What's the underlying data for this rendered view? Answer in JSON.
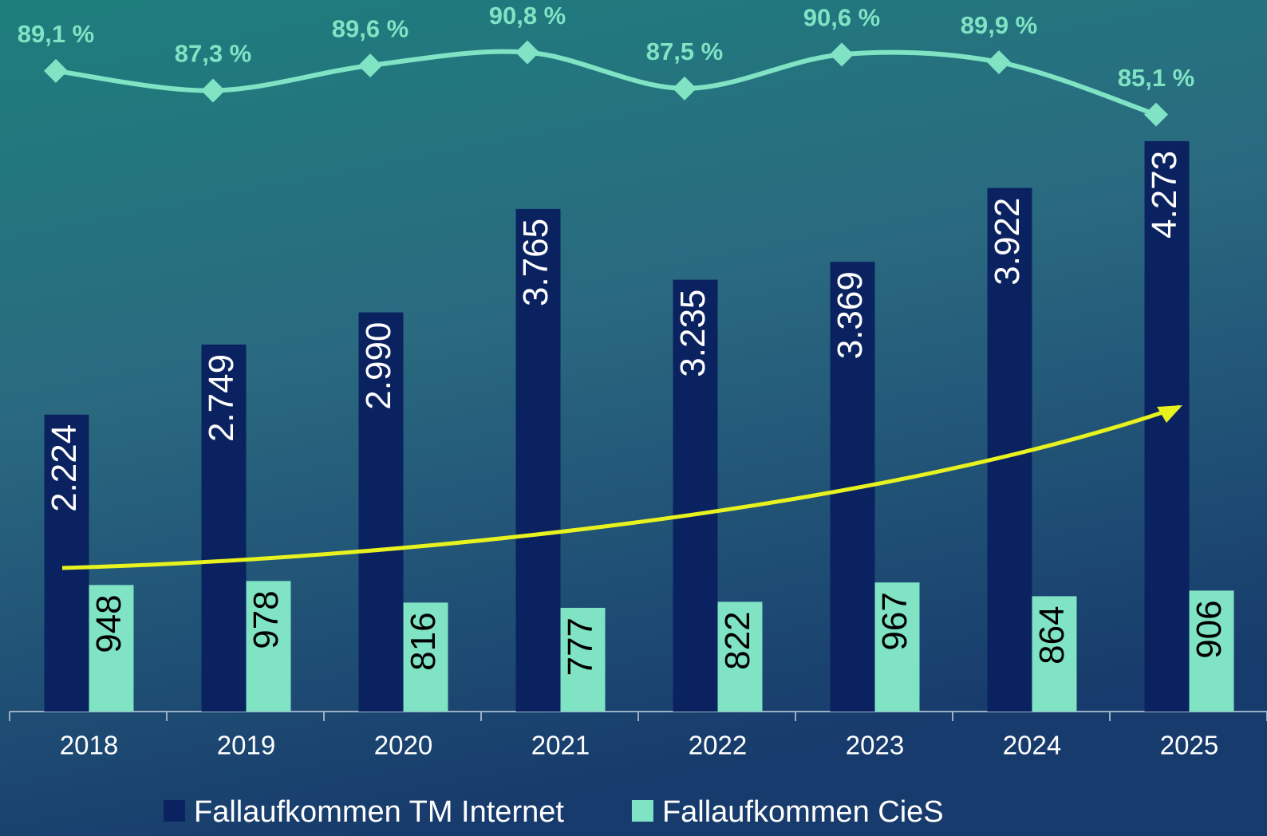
{
  "chart_data": {
    "type": "bar",
    "categories": [
      "2018",
      "2019",
      "2020",
      "2021",
      "2022",
      "2023",
      "2024",
      "2025"
    ],
    "ylim": [
      0,
      5330
    ],
    "y2lim": [
      30.4,
      95.6
    ],
    "series": [
      {
        "name": "Fallaufkommen TM Internet",
        "color": "#0b2260",
        "type": "bar",
        "values": [
          2224,
          2749,
          2990,
          3765,
          3235,
          3369,
          3922,
          4273
        ],
        "value_labels": [
          "2.224",
          "2.749",
          "2.990",
          "3.765",
          "3.235",
          "3.369",
          "3.922",
          "4.273"
        ]
      },
      {
        "name": "Fallaufkommen CieS",
        "color": "#7fe3c4",
        "type": "bar",
        "values": [
          948,
          978,
          816,
          777,
          822,
          967,
          864,
          906
        ]
      },
      {
        "color": "#7fe3c4",
        "type": "line",
        "axis": "y2",
        "values": [
          89.1,
          87.3,
          89.6,
          90.8,
          87.5,
          90.6,
          89.9,
          85.1
        ],
        "value_labels": [
          "89,1 %",
          "87,3 %",
          "89,6 %",
          "90,8 %",
          "87,5 %",
          "90,6 %",
          "89,9 %",
          "85,1 %"
        ]
      }
    ]
  }
}
